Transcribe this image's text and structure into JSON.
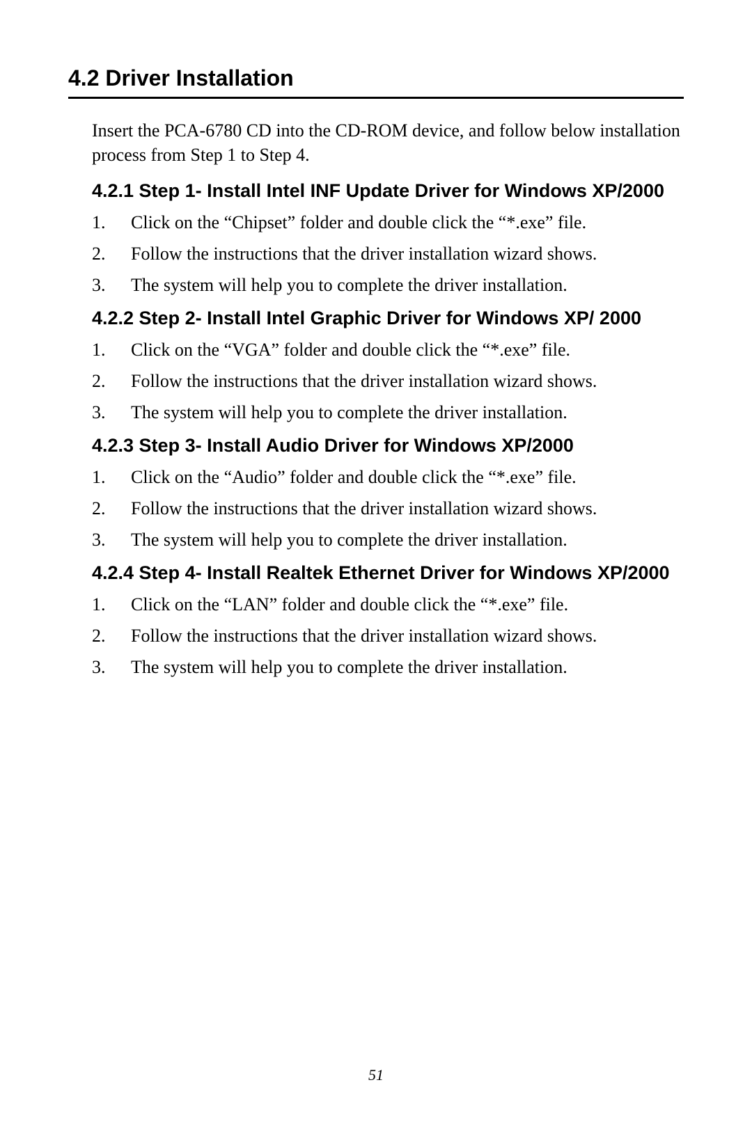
{
  "page": {
    "number": "51"
  },
  "section": {
    "title": "4.2  Driver Installation",
    "intro": "Insert the PCA-6780 CD into the CD-ROM device, and follow below installation process from Step 1 to Step 4."
  },
  "subsections": [
    {
      "title": "4.2.1 Step 1- Install Intel INF Update Driver for Windows XP/2000",
      "items": [
        {
          "num": "1.",
          "text": "Click on the “Chipset” folder and double click the “*.exe” file."
        },
        {
          "num": "2.",
          "text": "Follow the instructions that the driver installation wizard shows."
        },
        {
          "num": "3.",
          "text": "The system will help you to complete the driver installation."
        }
      ]
    },
    {
      "title": "4.2.2 Step 2- Install Intel Graphic Driver for Windows XP/ 2000",
      "items": [
        {
          "num": "1.",
          "text": "Click on the “VGA” folder and double click the “*.exe” file."
        },
        {
          "num": "2.",
          "text": " Follow the instructions that the driver installation wizard shows."
        },
        {
          "num": "3.",
          "text": "The system will help you to complete the driver installation."
        }
      ]
    },
    {
      "title": "4.2.3 Step 3- Install Audio Driver for Windows XP/2000",
      "items": [
        {
          "num": "1.",
          "text": "Click on the “Audio” folder and double click the “*.exe” file."
        },
        {
          "num": "2.",
          "text": "Follow the instructions that the driver installation wizard shows."
        },
        {
          "num": "3.",
          "text": "The system will help you to complete the driver installation."
        }
      ]
    },
    {
      "title": "4.2.4 Step 4- Install Realtek Ethernet Driver for Windows XP/2000",
      "items": [
        {
          "num": "1.",
          "text": "Click on the “LAN” folder and double click the “*.exe” file."
        },
        {
          "num": "2.",
          "text": "Follow the instructions that the driver installation wizard shows."
        },
        {
          "num": "3.",
          "text": "The system will help you to complete the driver installation."
        }
      ]
    }
  ]
}
